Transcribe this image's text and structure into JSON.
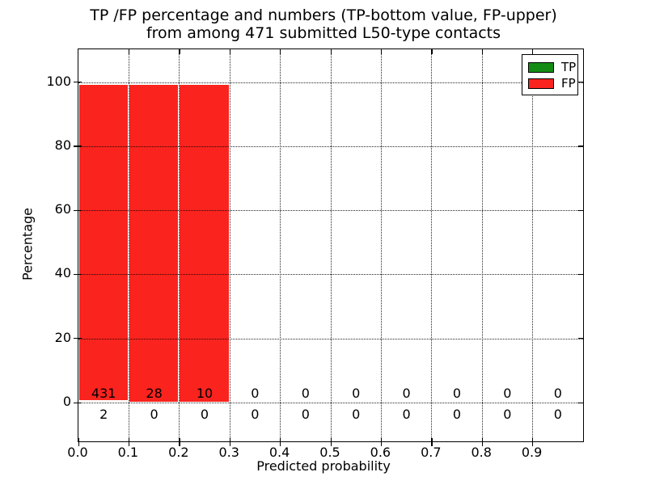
{
  "title": {
    "line1": "TP /FP percentage and numbers (TP-bottom value, FP-upper)",
    "line2": "from among 471 submitted L50-type contacts"
  },
  "axes": {
    "x_label": "Predicted probability",
    "y_label": "Percentage",
    "x_tick_labels": [
      "0.0",
      "0.1",
      "0.2",
      "0.3",
      "0.4",
      "0.5",
      "0.6",
      "0.7",
      "0.8",
      "0.9"
    ],
    "y_tick_labels": [
      "0",
      "20",
      "40",
      "60",
      "80",
      "100"
    ],
    "y_tick_values": [
      0,
      20,
      40,
      60,
      80,
      100
    ],
    "x_tick_values": [
      0.0,
      0.1,
      0.2,
      0.3,
      0.4,
      0.5,
      0.6,
      0.7,
      0.8,
      0.9
    ]
  },
  "legend": {
    "items": [
      {
        "label": "TP",
        "color": "#148c14"
      },
      {
        "label": "FP",
        "color": "#fa231e"
      }
    ],
    "position": "upper right"
  },
  "colors": {
    "tp_green": "#148c14",
    "fp_red": "#fa231e",
    "bar_edge": "#ffffff",
    "axis": "#000000",
    "background": "#ffffff"
  },
  "chart_data": {
    "type": "bar",
    "stacked": true,
    "title": "TP /FP percentage and numbers (TP-bottom value, FP-upper) from among 471 submitted L50-type contacts",
    "xlabel": "Predicted probability",
    "ylabel": "Percentage",
    "xlim": [
      0.0,
      1.0
    ],
    "ylim": [
      -12,
      110
    ],
    "grid": true,
    "grid_style": "dotted",
    "bin_edges": [
      0.0,
      0.1,
      0.2,
      0.3,
      0.4,
      0.5,
      0.6,
      0.7,
      0.8,
      0.9,
      1.0
    ],
    "series": [
      {
        "name": "TP",
        "color": "#148c14",
        "counts": [
          2,
          0,
          0,
          0,
          0,
          0,
          0,
          0,
          0,
          0
        ],
        "percent": [
          0.5,
          0,
          0,
          0,
          0,
          0,
          0,
          0,
          0,
          0
        ]
      },
      {
        "name": "FP",
        "color": "#fa231e",
        "counts": [
          431,
          28,
          10,
          0,
          0,
          0,
          0,
          0,
          0,
          0
        ],
        "percent": [
          98.9,
          99.4,
          99.4,
          0,
          0,
          0,
          0,
          0,
          0,
          0
        ]
      }
    ],
    "annotations": {
      "fp_counts_row": [
        "431",
        "28",
        "10",
        "0",
        "0",
        "0",
        "0",
        "0",
        "0",
        "0"
      ],
      "tp_counts_row": [
        "2",
        "0",
        "0",
        "0",
        "0",
        "0",
        "0",
        "0",
        "0",
        "0"
      ]
    },
    "total_submitted": 471
  }
}
